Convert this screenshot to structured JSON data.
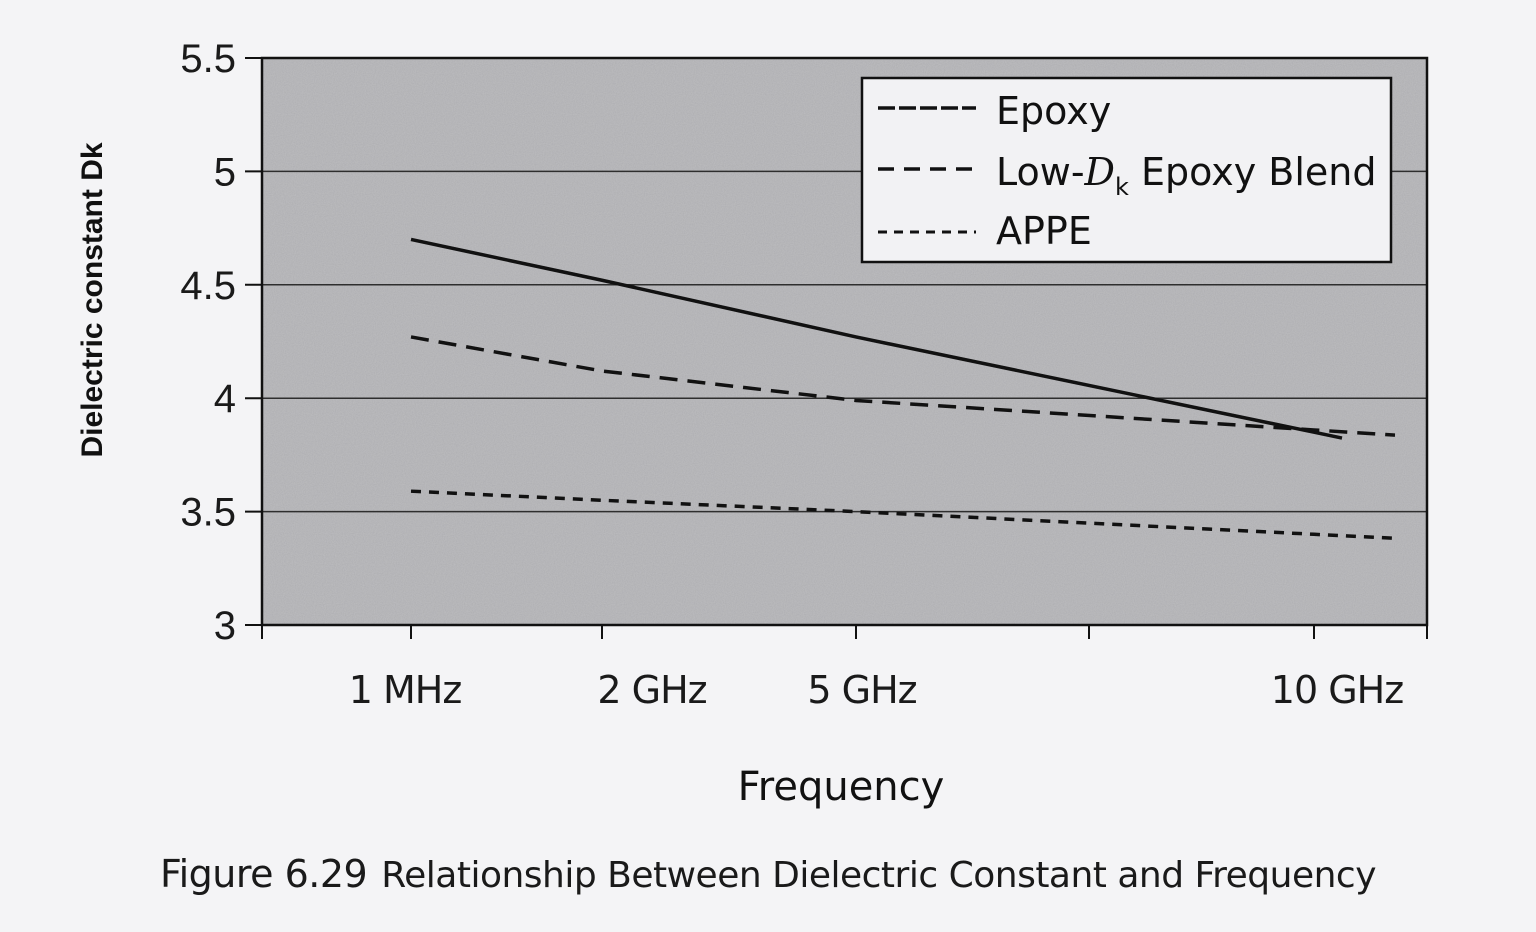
{
  "chart_data": {
    "type": "line",
    "title": "",
    "xlabel": "Frequency",
    "ylabel": "Dielectric constant Dk",
    "ylim": [
      3,
      5.5
    ],
    "yticks": [
      "3",
      "3.5",
      "4",
      "4.5",
      "5",
      "5.5"
    ],
    "grid": "horizontal",
    "legend_position": "upper right (inside plot)",
    "categories": [
      "1 MHz",
      "2 GHz",
      "5 GHz",
      "10 GHz"
    ],
    "series": [
      {
        "name": "Epoxy",
        "line_style": "solid",
        "values": [
          4.7,
          4.52,
          4.27,
          3.85
        ]
      },
      {
        "name": "Low-Dk Epoxy Blend",
        "line_style": "dashed",
        "values": [
          4.27,
          4.12,
          3.99,
          3.86
        ]
      },
      {
        "name": "APPE",
        "line_style": "short-dashed",
        "values": [
          3.59,
          3.55,
          3.5,
          3.4
        ]
      }
    ],
    "caption": "Figure 6.29 Relationship Between Dielectric Constant and Frequency"
  },
  "axes": {
    "y_ticks": [
      {
        "label": "5.5",
        "value": 5.5
      },
      {
        "label": "5",
        "value": 5.0
      },
      {
        "label": "4.5",
        "value": 4.5
      },
      {
        "label": "4",
        "value": 4.0
      },
      {
        "label": "3.5",
        "value": 3.5
      },
      {
        "label": "3",
        "value": 3.0
      }
    ],
    "x_labels": [
      {
        "label": "1 MHz"
      },
      {
        "label": "2 GHz"
      },
      {
        "label": "5 GHz"
      },
      {
        "label": "10 GHz"
      }
    ],
    "ylabel": "Dielectric constant Dk",
    "xlabel": "Frequency"
  },
  "legend": {
    "items": [
      {
        "label": "Epoxy"
      },
      {
        "label_prefix": "Low-",
        "label_italic": "D",
        "label_sub": "k",
        "label_suffix": " Epoxy Blend"
      },
      {
        "label": "APPE"
      }
    ]
  },
  "caption": {
    "figure_number": "Figure 6.29",
    "text": "Relationship Between Dielectric Constant and Frequency"
  },
  "colors": {
    "plot_background": "#bdbdc0",
    "page_background": "#f4f4f6",
    "line_color": "#111111",
    "gridline_color": "#333333",
    "legend_background": "#f2f2f4"
  }
}
